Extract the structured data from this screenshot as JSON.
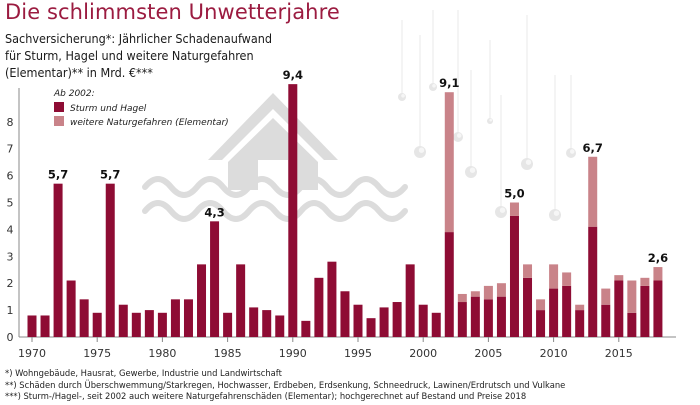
{
  "header": {
    "title": "Die schlimmsten Unwetterjahre",
    "subtitle_lines": [
      "Sachversicherung*: Jährlicher Schadenaufwand",
      "für Sturm, Hagel und weitere Naturgefahren",
      "(Elementar)** in Mrd. €***"
    ]
  },
  "legend": {
    "heading": "Ab 2002:",
    "items": [
      {
        "label": "Sturm und Hagel",
        "color": "#8e0c34"
      },
      {
        "label": "weitere Naturgefahren (Elementar)",
        "color": "#c98389"
      }
    ]
  },
  "footnotes": [
    "*) Wohngebäude, Hausrat, Gewerbe, Industrie und Landwirtschaft",
    "**) Schäden durch Überschwemmung/Starkregen, Hochwasser, Erdbeben, Erdsenkung, Schneedruck, Lawinen/Erdrutsch und Vulkane",
    "***) Sturm-/Hagel-, seit 2002 auch weitere Naturgefahrenschäden (Elementar); hochgerechnet auf Bestand und Preise 2018"
  ],
  "chart_data": {
    "type": "bar",
    "stacked": true,
    "title": "Die schlimmsten Unwetterjahre",
    "xlabel": "",
    "ylabel": "Mrd. €",
    "ylim": [
      0,
      9.4
    ],
    "yticks": [
      0,
      1,
      2,
      3,
      4,
      5,
      6,
      7,
      8
    ],
    "xticks": [
      1970,
      1975,
      1980,
      1985,
      1990,
      1995,
      2000,
      2005,
      2010,
      2015
    ],
    "grid": false,
    "legend_position": "top-left",
    "categories": [
      1970,
      1971,
      1972,
      1973,
      1974,
      1975,
      1976,
      1977,
      1978,
      1979,
      1980,
      1981,
      1982,
      1983,
      1984,
      1985,
      1986,
      1987,
      1988,
      1989,
      1990,
      1991,
      1992,
      1993,
      1994,
      1995,
      1996,
      1997,
      1998,
      1999,
      2000,
      2001,
      2002,
      2003,
      2004,
      2005,
      2006,
      2007,
      2008,
      2009,
      2010,
      2011,
      2012,
      2013,
      2014,
      2015,
      2016,
      2017,
      2018
    ],
    "series": [
      {
        "name": "Sturm und Hagel",
        "color": "#8e0c34",
        "values": [
          0.8,
          0.8,
          5.7,
          2.1,
          1.4,
          0.9,
          5.7,
          1.2,
          0.9,
          1.0,
          0.9,
          1.4,
          1.4,
          2.7,
          4.3,
          0.9,
          2.7,
          1.1,
          1.0,
          0.8,
          9.4,
          0.6,
          2.2,
          2.8,
          1.7,
          1.2,
          0.7,
          1.1,
          1.3,
          2.7,
          1.2,
          0.9,
          3.9,
          1.3,
          1.5,
          1.4,
          1.5,
          4.5,
          2.2,
          1.0,
          1.8,
          1.9,
          1.0,
          4.1,
          1.2,
          2.1,
          0.9,
          1.9,
          2.1
        ]
      },
      {
        "name": "weitere Naturgefahren (Elementar)",
        "color": "#c98389",
        "values": [
          0,
          0,
          0,
          0,
          0,
          0,
          0,
          0,
          0,
          0,
          0,
          0,
          0,
          0,
          0,
          0,
          0,
          0,
          0,
          0,
          0,
          0,
          0,
          0,
          0,
          0,
          0,
          0,
          0,
          0,
          0,
          0,
          5.2,
          0.3,
          0.2,
          0.5,
          0.5,
          0.5,
          0.5,
          0.4,
          0.9,
          0.5,
          0.2,
          2.6,
          0.6,
          0.2,
          1.2,
          0.3,
          0.5
        ]
      }
    ],
    "annotations": [
      {
        "x": 1972,
        "label": "5,7"
      },
      {
        "x": 1976,
        "label": "5,7"
      },
      {
        "x": 1984,
        "label": "4,3"
      },
      {
        "x": 1990,
        "label": "9,4"
      },
      {
        "x": 2002,
        "label": "9,1"
      },
      {
        "x": 2007,
        "label": "5,0"
      },
      {
        "x": 2013,
        "label": "6,7"
      },
      {
        "x": 2018,
        "label": "2,6"
      }
    ]
  }
}
